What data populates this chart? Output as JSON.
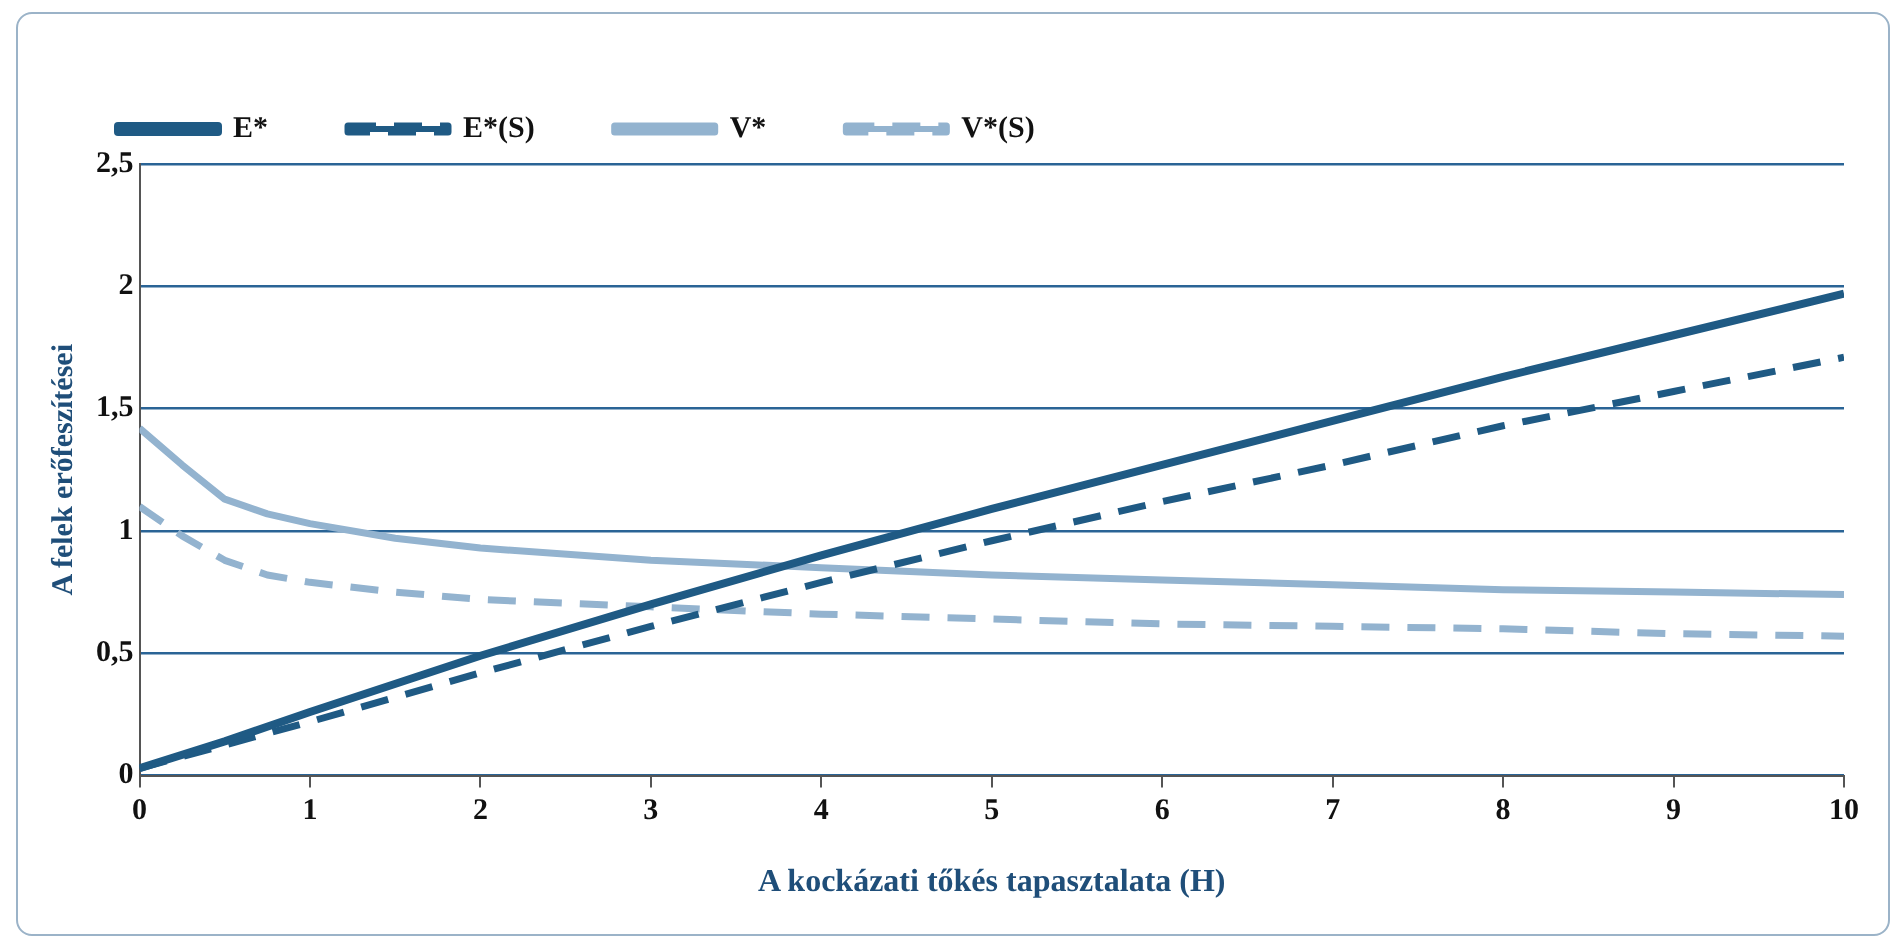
{
  "chart_data": {
    "type": "line",
    "xlabel": "A kockázati tőkés tapasztalata (H)",
    "ylabel": "A felek erőfeszítései",
    "xlim": [
      0,
      10
    ],
    "xticks": [
      0,
      1,
      2,
      3,
      4,
      5,
      6,
      7,
      8,
      9,
      10
    ],
    "ylim": [
      0,
      2.5
    ],
    "yticks": [
      0,
      {
        "value": 0.5,
        "label": "0,5"
      },
      1,
      {
        "value": 1.5,
        "label": "1,5"
      },
      2,
      {
        "value": 2.5,
        "label": "2,5"
      }
    ],
    "grid": "y",
    "legend": "top",
    "marker": "none",
    "series": [
      {
        "name": "E*",
        "color": "#1f5a84",
        "line_style": "solid",
        "x": [
          0,
          0.5,
          1,
          2,
          3,
          4,
          5,
          6,
          7,
          8,
          9,
          10
        ],
        "values": [
          0.03,
          0.14,
          0.26,
          0.49,
          0.7,
          0.9,
          1.09,
          1.27,
          1.45,
          1.63,
          1.8,
          1.97
        ]
      },
      {
        "name": "E*(S)",
        "color": "#1f5a84",
        "line_style": "dashed",
        "x": [
          0,
          1,
          2,
          3,
          4,
          5,
          6,
          7,
          8,
          9,
          10
        ],
        "values": [
          0.03,
          0.22,
          0.42,
          0.61,
          0.79,
          0.96,
          1.12,
          1.27,
          1.43,
          1.57,
          1.71
        ]
      },
      {
        "name": "V*",
        "color": "#93b3cf",
        "line_style": "solid",
        "x": [
          0,
          0.25,
          0.5,
          0.75,
          1,
          1.5,
          2,
          3,
          4,
          5,
          6,
          7,
          8,
          9,
          10
        ],
        "values": [
          1.42,
          1.27,
          1.13,
          1.07,
          1.03,
          0.97,
          0.93,
          0.88,
          0.85,
          0.82,
          0.8,
          0.78,
          0.76,
          0.75,
          0.74
        ]
      },
      {
        "name": "V*(S)",
        "color": "#93b3cf",
        "line_style": "dashed",
        "x": [
          0,
          0.25,
          0.5,
          0.75,
          1,
          1.5,
          2,
          3,
          4,
          5,
          6,
          7,
          8,
          9,
          10
        ],
        "values": [
          1.1,
          0.98,
          0.88,
          0.82,
          0.79,
          0.75,
          0.72,
          0.69,
          0.66,
          0.64,
          0.62,
          0.61,
          0.6,
          0.58,
          0.57
        ]
      }
    ]
  }
}
